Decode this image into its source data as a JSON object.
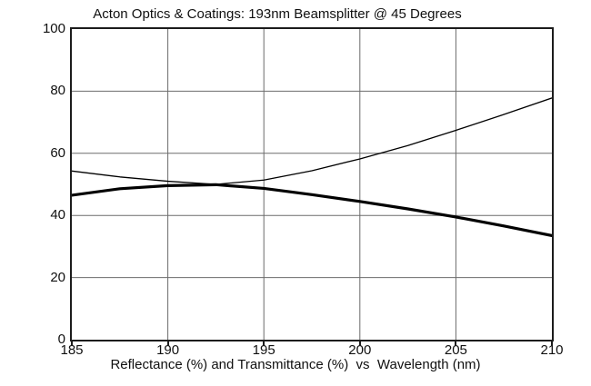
{
  "colors": {
    "background": "#ffffff",
    "text": "#101010",
    "line": "#000000",
    "grid": "#6b6b6b",
    "border": "#1c1c1c"
  },
  "chart_data": {
    "type": "line",
    "title": "Acton Optics & Coatings: 193nm Beamsplitter @ 45 Degrees",
    "xlabel": "Reflectance (%) and Transmittance (%)  vs  Wavelength (nm)",
    "ylabel": "",
    "x": [
      185,
      187.5,
      190,
      192.5,
      195,
      197.5,
      200,
      202.5,
      205,
      207.5,
      210
    ],
    "series": [
      {
        "name": "thin line",
        "style": "thin",
        "stroke_width": 1.3,
        "values": [
          54.3,
          52.4,
          51.0,
          50.0,
          51.4,
          54.4,
          58.2,
          62.5,
          67.4,
          72.5,
          77.8
        ]
      },
      {
        "name": "thick line",
        "style": "thick",
        "stroke_width": 3.2,
        "values": [
          46.5,
          48.6,
          49.6,
          49.9,
          48.7,
          46.7,
          44.5,
          42.1,
          39.5,
          36.6,
          33.5
        ]
      }
    ],
    "x_ticks": [
      185,
      190,
      195,
      200,
      205,
      210
    ],
    "y_ticks": [
      0,
      20,
      40,
      60,
      80,
      100
    ],
    "xlim": [
      185,
      210
    ],
    "ylim": [
      0,
      100
    ],
    "grid": true,
    "legend": "none"
  }
}
